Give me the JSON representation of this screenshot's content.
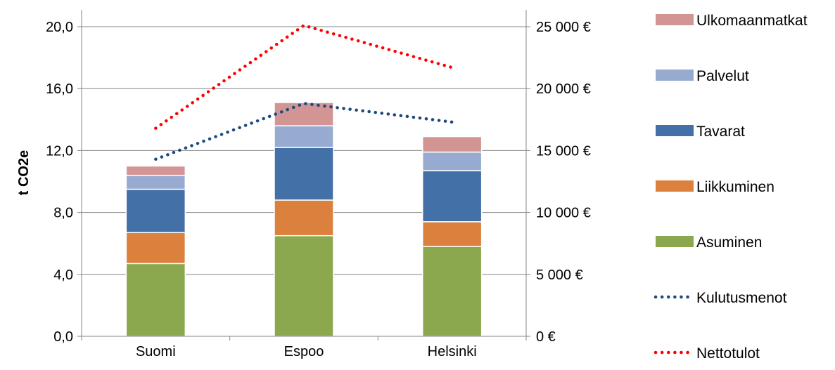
{
  "chart_data": {
    "type": "bar",
    "stacked": true,
    "categories": [
      "Suomi",
      "Espoo",
      "Helsinki"
    ],
    "series": [
      {
        "name": "Asuminen",
        "values": [
          4.7,
          6.5,
          5.8
        ],
        "color": "#8BA84F"
      },
      {
        "name": "Liikkuminen",
        "values": [
          2.0,
          2.3,
          1.6
        ],
        "color": "#DC813D"
      },
      {
        "name": "Tavarat",
        "values": [
          2.8,
          3.4,
          3.3
        ],
        "color": "#4470A8"
      },
      {
        "name": "Palvelut",
        "values": [
          0.9,
          1.4,
          1.2
        ],
        "color": "#97ABD1"
      },
      {
        "name": "Ulkomaanmatkat",
        "values": [
          0.6,
          1.5,
          1.0
        ],
        "color": "#D29594"
      }
    ],
    "lines": [
      {
        "name": "Kulutusmenot",
        "axis": "right",
        "values": [
          14300,
          18800,
          17300
        ],
        "color": "#1F497D",
        "style": "dotted"
      },
      {
        "name": "Nettotulot",
        "axis": "right",
        "values": [
          16800,
          25100,
          21700
        ],
        "color": "#FF0000",
        "style": "dotted"
      }
    ],
    "title": "",
    "ylabel": "t CO2e",
    "ylim": [
      0,
      20
    ],
    "yticks": [
      "0,0",
      "4,0",
      "8,0",
      "12,0",
      "16,0",
      "20,0"
    ],
    "y2lim": [
      0,
      25000
    ],
    "y2ticks": [
      "0 €",
      "5 000 €",
      "10 000 €",
      "15 000 €",
      "20 000 €",
      "25 000 €"
    ],
    "grid": "horizontal",
    "legend_position": "right",
    "legend_order": [
      "Ulkomaanmatkat",
      "Palvelut",
      "Tavarat",
      "Liikkuminen",
      "Asuminen",
      "Kulutusmenot",
      "Nettotulot"
    ]
  }
}
